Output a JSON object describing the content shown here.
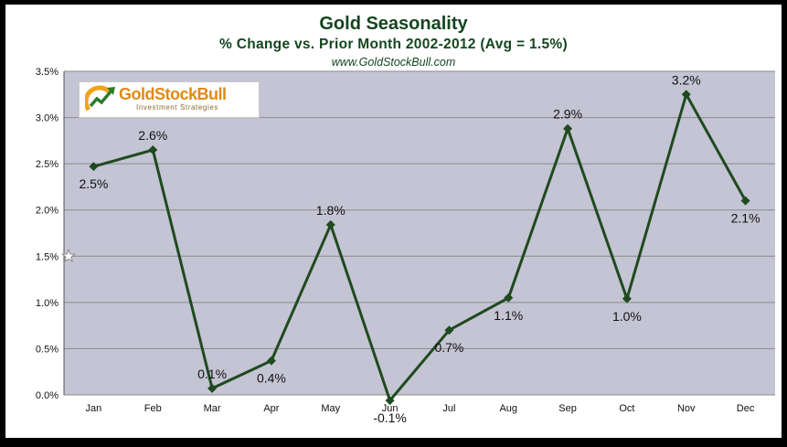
{
  "header": {
    "title": "Gold Seasonality",
    "subtitle": "% Change vs. Prior Month 2002-2012 (Avg = 1.5%)",
    "source": "www.GoldStockBull.com"
  },
  "logo": {
    "name": "GoldStockBull",
    "tagline": "Investment Strategies"
  },
  "chart_data": {
    "type": "line",
    "title": "Gold Seasonality",
    "subtitle": "% Change vs. Prior Month 2002-2012 (Avg = 1.5%)",
    "xlabel": "",
    "ylabel": "",
    "categories": [
      "Jan",
      "Feb",
      "Mar",
      "Apr",
      "May",
      "Jun",
      "Jul",
      "Aug",
      "Sep",
      "Oct",
      "Nov",
      "Dec"
    ],
    "values": [
      2.47,
      2.65,
      0.07,
      0.37,
      1.84,
      -0.06,
      0.7,
      1.05,
      2.88,
      1.04,
      3.25,
      2.1
    ],
    "data_labels": [
      "2.5%",
      "2.6%",
      "0.1%",
      "0.4%",
      "1.8%",
      "-0.1%",
      "0.7%",
      "1.1%",
      "2.9%",
      "1.0%",
      "3.2%",
      "2.1%"
    ],
    "label_position": [
      "below",
      "above",
      "above",
      "below",
      "above",
      "below",
      "below",
      "below",
      "above",
      "below",
      "above",
      "below"
    ],
    "yticks": [
      "0.0%",
      "0.5%",
      "1.0%",
      "1.5%",
      "2.0%",
      "2.5%",
      "3.0%",
      "3.5%"
    ],
    "ylim": [
      0,
      3.5
    ],
    "grid": true,
    "average": 1.5,
    "average_marker": "star-icon",
    "colors": {
      "line": "#1f4a1f",
      "plot_background": "#c4c4d4",
      "gridline": "#8a8a8a",
      "title": "#14451f"
    }
  }
}
